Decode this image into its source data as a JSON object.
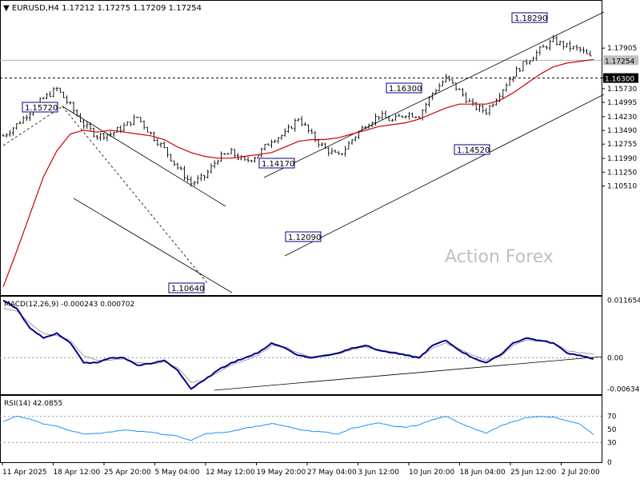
{
  "header": {
    "symbol": "EURUSD,H4",
    "ohlc": "1.17212 1.17275 1.17209 1.17254"
  },
  "watermark": "Action Forex",
  "colors": {
    "price_bar": "#000000",
    "ma": "#cc0000",
    "macd": "#00008b",
    "signal": "#a0a0a0",
    "rsi": "#1e90ff",
    "label_border": "#00008b",
    "current_price_bg": "#c0c0c0",
    "level_bg": "#000000",
    "watermark": "#c0c0c0"
  },
  "chart_data": [
    {
      "type": "line",
      "panel": "price",
      "title": "EURUSD,H4",
      "ylim": [
        1.047,
        1.204
      ],
      "y_ticks": [
        "1.17905",
        "1.16300",
        "1.15730",
        "1.14995",
        "1.14230",
        "1.13490",
        "1.12755",
        "1.11990",
        "1.11250",
        "1.10510"
      ],
      "x_ticks": [
        "11 Apr 2025",
        "18 Apr 12:00",
        "25 Apr 20:00",
        "5 May 04:00",
        "12 May 12:00",
        "19 May 20:00",
        "27 May 04:00",
        "3 Jun 12:00",
        "10 Jun 20:00",
        "18 Jun 04:00",
        "25 Jun 12:00",
        "2 Jul 20:00"
      ],
      "series": [
        {
          "kind": "price",
          "close": [
            1.132,
            1.138,
            1.145,
            1.152,
            1.1572,
            1.148,
            1.138,
            1.132,
            1.133,
            1.137,
            1.142,
            1.133,
            1.125,
            1.115,
            1.1064,
            1.11,
            1.12,
            1.123,
            1.118,
            1.122,
            1.13,
            1.133,
            1.1417,
            1.132,
            1.125,
            1.1209,
            1.13,
            1.138,
            1.143,
            1.14,
            1.144,
            1.143,
            1.155,
            1.163,
            1.156,
            1.148,
            1.1452,
            1.155,
            1.165,
            1.172,
            1.178,
            1.1829,
            1.18,
            1.178,
            1.1725
          ]
        },
        {
          "kind": "ma",
          "values": [
            1.051,
            1.07,
            1.09,
            1.11,
            1.124,
            1.133,
            1.135,
            1.134,
            1.135,
            1.134,
            1.133,
            1.132,
            1.13,
            1.126,
            1.123,
            1.121,
            1.12,
            1.12,
            1.121,
            1.122,
            1.123,
            1.126,
            1.129,
            1.13,
            1.13,
            1.131,
            1.133,
            1.135,
            1.137,
            1.138,
            1.139,
            1.141,
            1.144,
            1.147,
            1.149,
            1.149,
            1.149,
            1.151,
            1.155,
            1.16,
            1.165,
            1.169,
            1.171,
            1.172,
            1.173
          ]
        }
      ],
      "levels": [
        {
          "label": "1.15720",
          "value": 1.1572,
          "kind": "swing"
        },
        {
          "label": "1.10640",
          "value": 1.1064,
          "kind": "swing"
        },
        {
          "label": "1.14170",
          "value": 1.1417,
          "kind": "swing"
        },
        {
          "label": "1.12090",
          "value": 1.1209,
          "kind": "swing"
        },
        {
          "label": "1.16300",
          "value": 1.163,
          "kind": "swing"
        },
        {
          "label": "1.14520",
          "value": 1.1452,
          "kind": "swing"
        },
        {
          "label": "1.18290",
          "value": 1.1829,
          "kind": "swing"
        }
      ],
      "current_price": "1.17254",
      "horizontal_level": "1.16300"
    },
    {
      "type": "line",
      "panel": "macd",
      "title": "MACD(12,26,9) -0.000243 0.000702",
      "ylim": [
        -0.0072,
        0.0122
      ],
      "y_ticks": [
        "0.011654",
        "0.00",
        "-0.006345"
      ],
      "series": [
        {
          "name": "MACD",
          "values": [
            0.0116,
            0.01,
            0.006,
            0.004,
            0.005,
            0.003,
            -0.001,
            -0.001,
            0.0,
            0.0,
            -0.0015,
            -0.0012,
            -0.0005,
            -0.0025,
            -0.0063,
            -0.0045,
            -0.0025,
            -0.001,
            0.0,
            0.001,
            0.003,
            0.002,
            0.0005,
            0.0,
            0.0005,
            0.001,
            0.002,
            0.0025,
            0.0015,
            0.001,
            0.0005,
            0.0,
            0.0025,
            0.0035,
            0.0015,
            0.0,
            -0.001,
            0.0005,
            0.003,
            0.004,
            0.0035,
            0.003,
            0.001,
            0.0005,
            -0.0002
          ]
        },
        {
          "name": "Signal",
          "values": [
            0.01,
            0.0095,
            0.007,
            0.005,
            0.0045,
            0.0035,
            0.0005,
            -0.0005,
            -0.0005,
            -0.0002,
            -0.001,
            -0.0012,
            -0.0008,
            -0.002,
            -0.005,
            -0.0045,
            -0.003,
            -0.0015,
            -0.0005,
            0.0005,
            0.0025,
            0.0022,
            0.001,
            0.0002,
            0.0003,
            0.0008,
            0.0017,
            0.0022,
            0.0017,
            0.0012,
            0.0007,
            0.0002,
            0.002,
            0.003,
            0.0018,
            0.0005,
            -0.0005,
            0.0002,
            0.0025,
            0.0036,
            0.0034,
            0.003,
            0.0015,
            0.001,
            0.0007
          ]
        }
      ]
    },
    {
      "type": "line",
      "panel": "rsi",
      "title": "RSI(14) 42.0855",
      "ylim": [
        0,
        100
      ],
      "y_ticks": [
        "70",
        "50",
        "30",
        "0"
      ],
      "series": [
        {
          "name": "RSI(14)",
          "values": [
            62,
            70,
            66,
            58,
            55,
            48,
            43,
            44,
            46,
            49,
            47,
            46,
            42,
            40,
            33,
            43,
            45,
            47,
            52,
            55,
            59,
            55,
            50,
            47,
            46,
            43,
            52,
            56,
            60,
            55,
            53,
            57,
            65,
            70,
            60,
            52,
            44,
            55,
            62,
            68,
            70,
            69,
            63,
            58,
            42
          ]
        }
      ]
    }
  ]
}
